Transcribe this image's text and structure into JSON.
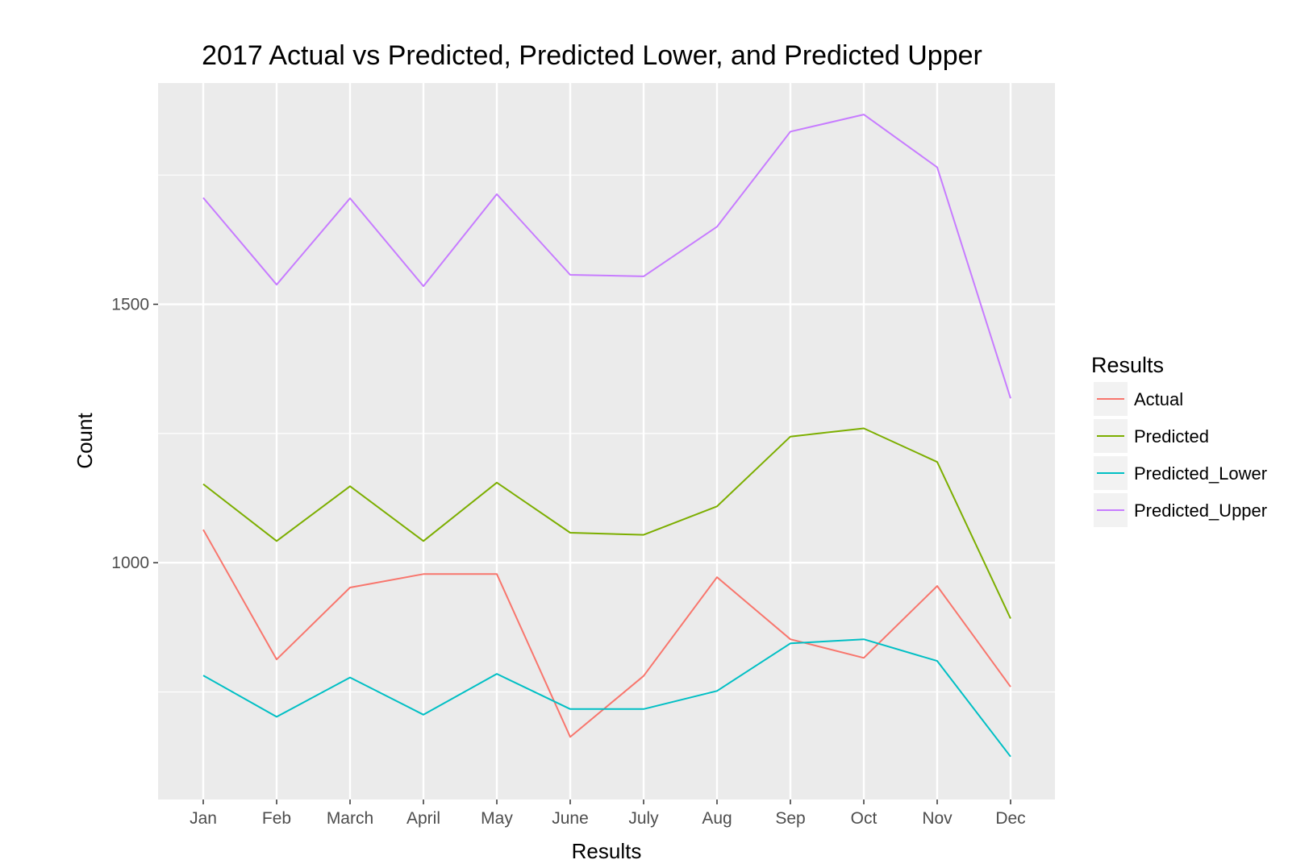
{
  "chart_data": {
    "type": "line",
    "title": "2017 Actual vs Predicted, Predicted Lower, and Predicted Upper",
    "xlabel": "Results",
    "ylabel": "Count",
    "categories": [
      "Jan",
      "Feb",
      "March",
      "April",
      "May",
      "June",
      "July",
      "Aug",
      "Sep",
      "Oct",
      "Nov",
      "Dec"
    ],
    "ylim": [
      542,
      1928
    ],
    "yticks": [
      1000,
      1500
    ],
    "y_minor_gridlines": [
      750,
      1250,
      1750
    ],
    "grid": true,
    "legend": {
      "title": "Results",
      "position": "right"
    },
    "series": [
      {
        "name": "Actual",
        "color": "#F8766D",
        "values": [
          1064,
          813,
          952,
          978,
          978,
          663,
          781,
          972,
          852,
          816,
          955,
          760
        ]
      },
      {
        "name": "Predicted",
        "color": "#7CAE00",
        "values": [
          1152,
          1042,
          1148,
          1042,
          1155,
          1058,
          1054,
          1109,
          1244,
          1260,
          1195,
          892
        ]
      },
      {
        "name": "Predicted_Lower",
        "color": "#00BFC4",
        "values": [
          782,
          702,
          778,
          706,
          785,
          717,
          717,
          752,
          844,
          852,
          810,
          625
        ]
      },
      {
        "name": "Predicted_Upper",
        "color": "#C77CFF",
        "values": [
          1706,
          1538,
          1705,
          1535,
          1713,
          1557,
          1554,
          1650,
          1834,
          1867,
          1765,
          1318
        ]
      }
    ]
  }
}
